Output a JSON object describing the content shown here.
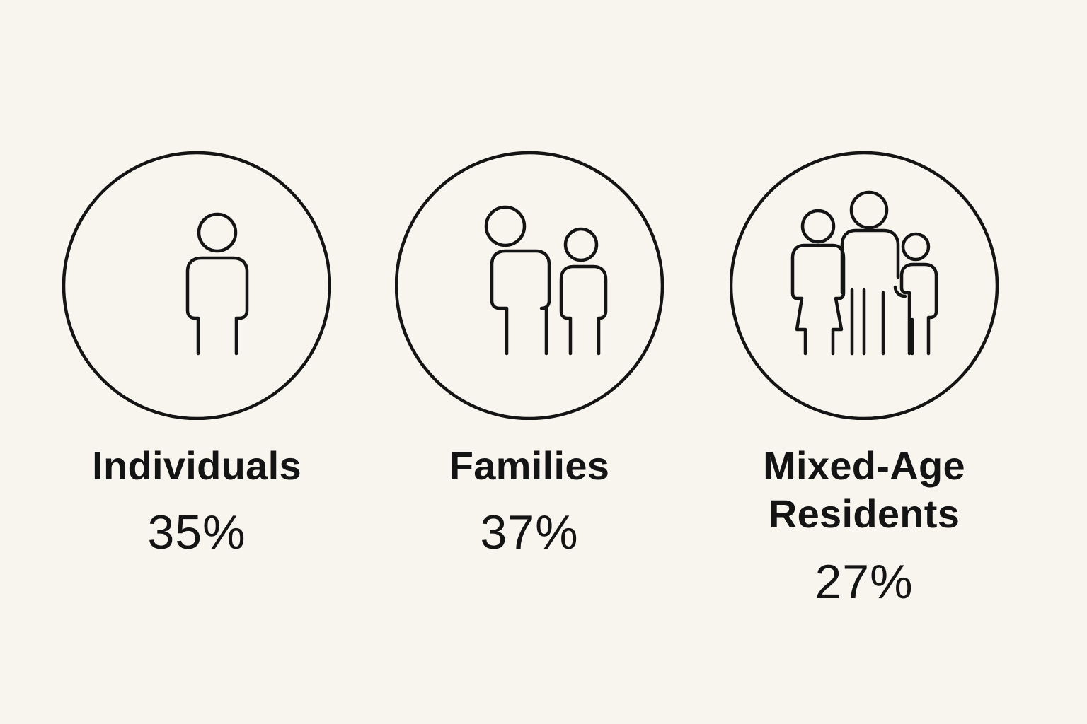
{
  "colors": {
    "background": "#f8f5ef",
    "ink": "#141414"
  },
  "categories": [
    {
      "label": "Individuals",
      "percent": "35%",
      "icon": "single-person-icon"
    },
    {
      "label": "Families",
      "percent": "37%",
      "icon": "two-people-icon"
    },
    {
      "label_line1": "Mixed-Age",
      "label_line2": "Residents",
      "percent": "27%",
      "icon": "three-people-icon"
    }
  ]
}
